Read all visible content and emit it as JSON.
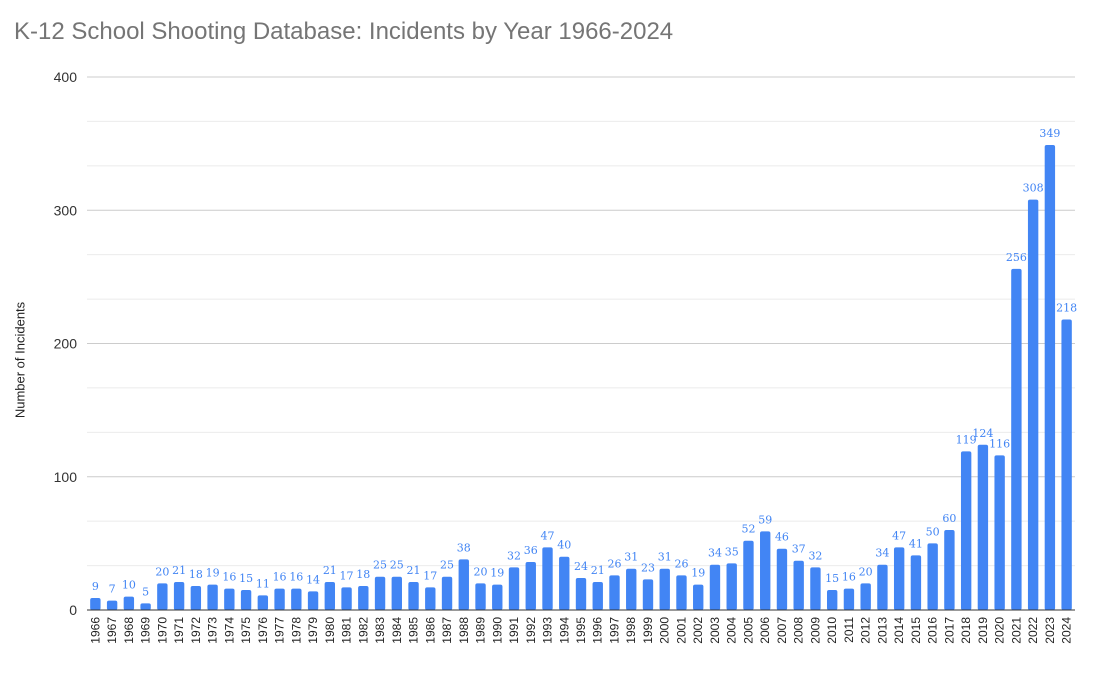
{
  "chart_data": {
    "type": "bar",
    "title": "K-12 School Shooting Database: Incidents by Year 1966-2024",
    "xlabel": "",
    "ylabel": "Number of Incidents",
    "ylim": [
      0,
      400
    ],
    "yticks": [
      0,
      100,
      200,
      300,
      400
    ],
    "grid": true,
    "bar_color": "#4285f4",
    "label_color": "#4285f4",
    "categories": [
      "1966",
      "1967",
      "1968",
      "1969",
      "1970",
      "1971",
      "1972",
      "1973",
      "1974",
      "1975",
      "1976",
      "1977",
      "1978",
      "1979",
      "1980",
      "1981",
      "1982",
      "1983",
      "1984",
      "1985",
      "1986",
      "1987",
      "1988",
      "1989",
      "1990",
      "1991",
      "1992",
      "1993",
      "1994",
      "1995",
      "1996",
      "1997",
      "1998",
      "1999",
      "2000",
      "2001",
      "2002",
      "2003",
      "2004",
      "2005",
      "2006",
      "2007",
      "2008",
      "2009",
      "2010",
      "2011",
      "2012",
      "2013",
      "2014",
      "2015",
      "2016",
      "2017",
      "2018",
      "2019",
      "2020",
      "2021",
      "2022",
      "2023",
      "2024"
    ],
    "values": [
      9,
      7,
      10,
      5,
      20,
      21,
      18,
      19,
      16,
      15,
      11,
      16,
      16,
      14,
      21,
      17,
      18,
      25,
      25,
      21,
      17,
      25,
      38,
      20,
      19,
      32,
      36,
      47,
      40,
      24,
      21,
      26,
      31,
      23,
      31,
      26,
      19,
      34,
      35,
      52,
      59,
      46,
      37,
      32,
      15,
      16,
      20,
      34,
      47,
      41,
      50,
      60,
      119,
      124,
      116,
      256,
      308,
      349,
      218
    ]
  }
}
